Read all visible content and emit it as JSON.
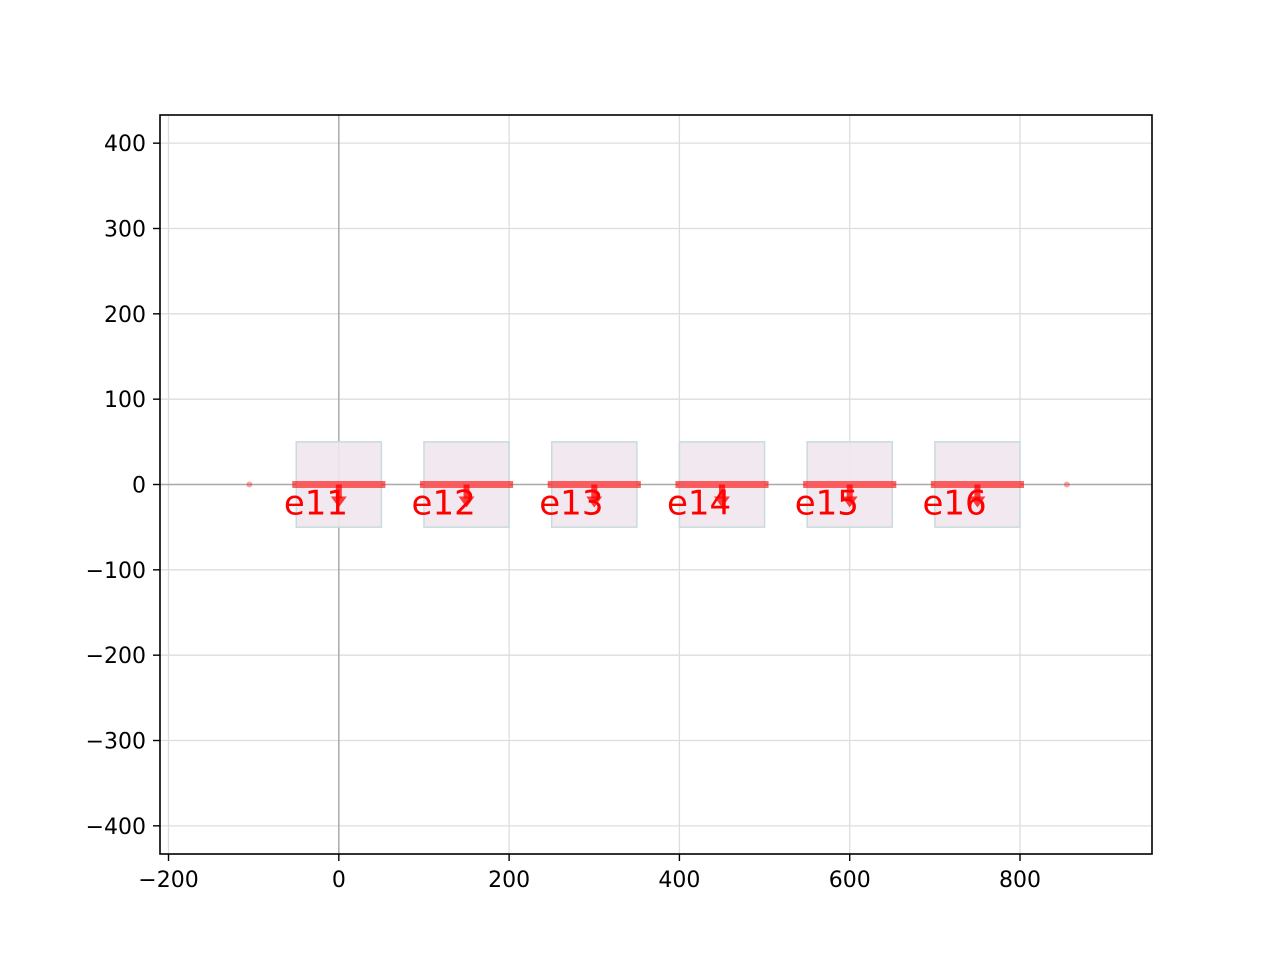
{
  "chart_data": {
    "type": "scatter",
    "title": "",
    "xlabel": "",
    "ylabel": "",
    "xlim": [
      -210,
      955
    ],
    "ylim": [
      -433,
      433
    ],
    "xticks": [
      -200,
      0,
      200,
      400,
      600,
      800
    ],
    "yticks": [
      -400,
      -300,
      -200,
      -100,
      0,
      100,
      200,
      300,
      400
    ],
    "grid": true,
    "colors": {
      "box_fill": "#f0e6ee",
      "box_edge": "#c8dcdc",
      "element": "#ff0000",
      "grid": "#dddddd",
      "zero_line": "#aaaaaa"
    },
    "elements": [
      {
        "label": "e11",
        "x": 0,
        "y": 0,
        "x_start": -50,
        "x_end": 50,
        "box_x": [
          -50,
          50
        ],
        "box_y": [
          -50,
          50
        ]
      },
      {
        "label": "e12",
        "x": 150,
        "y": 0,
        "x_start": 100,
        "x_end": 200,
        "box_x": [
          100,
          200
        ],
        "box_y": [
          -50,
          50
        ]
      },
      {
        "label": "e13",
        "x": 300,
        "y": 0,
        "x_start": 250,
        "x_end": 350,
        "box_x": [
          250,
          350
        ],
        "box_y": [
          -50,
          50
        ]
      },
      {
        "label": "e14",
        "x": 450,
        "y": 0,
        "x_start": 400,
        "x_end": 500,
        "box_x": [
          400,
          500
        ],
        "box_y": [
          -50,
          50
        ]
      },
      {
        "label": "e15",
        "x": 600,
        "y": 0,
        "x_start": 550,
        "x_end": 650,
        "box_x": [
          550,
          650
        ],
        "box_y": [
          -50,
          50
        ]
      },
      {
        "label": "e16",
        "x": 750,
        "y": 0,
        "x_start": 700,
        "x_end": 800,
        "box_x": [
          700,
          800
        ],
        "box_y": [
          -50,
          50
        ]
      }
    ],
    "end_points": [
      {
        "x": -105,
        "y": 0
      },
      {
        "x": 855,
        "y": 0
      }
    ]
  }
}
